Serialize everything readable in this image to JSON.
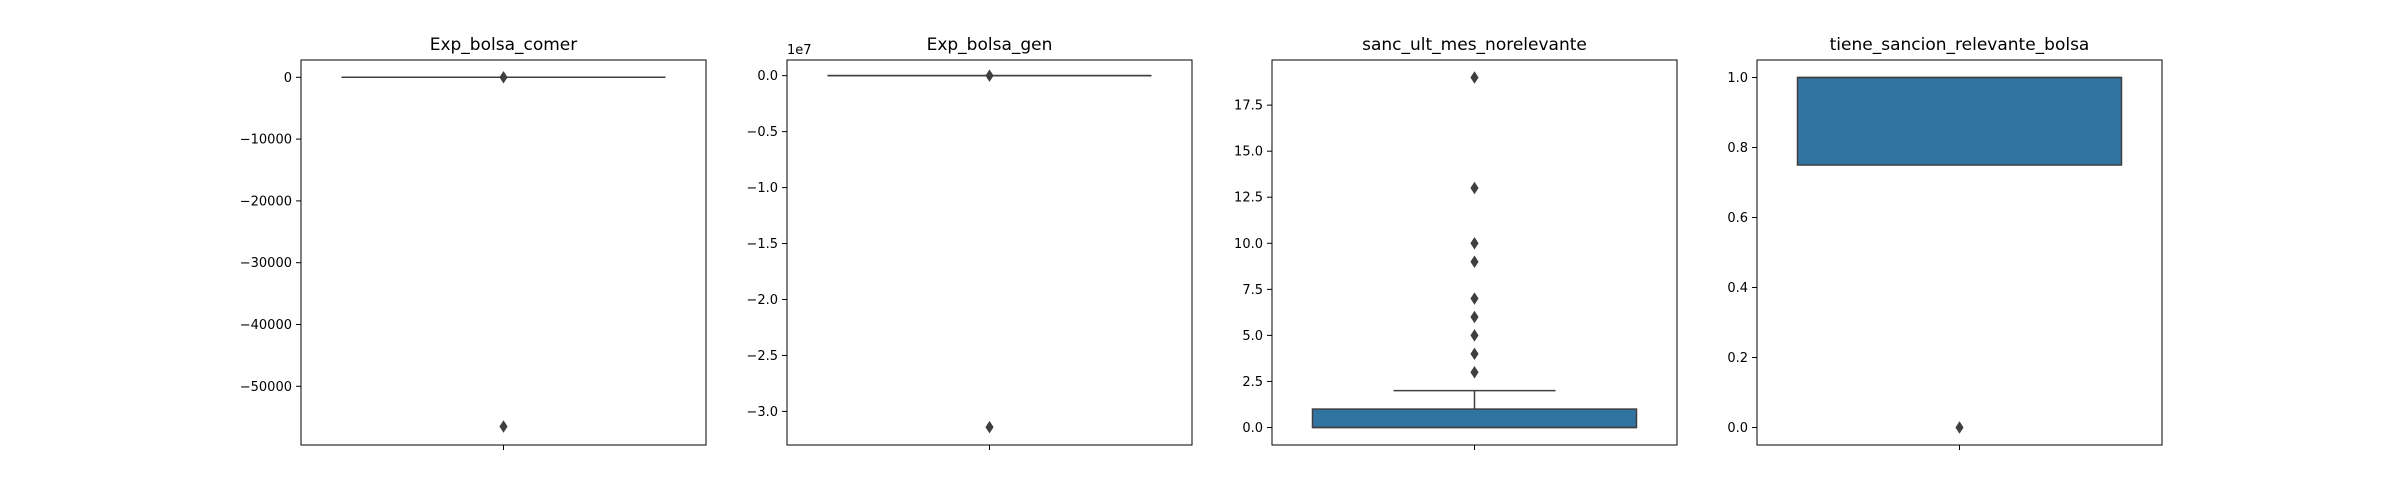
{
  "chart_data": [
    {
      "type": "box",
      "title": "Exp_bolsa_comer",
      "ylim": [
        -59500,
        2800
      ],
      "yticks": [
        {
          "value": 0,
          "label": "0"
        },
        {
          "value": -10000,
          "label": "−10000"
        },
        {
          "value": -20000,
          "label": "−20000"
        },
        {
          "value": -30000,
          "label": "−30000"
        },
        {
          "value": -40000,
          "label": "−40000"
        },
        {
          "value": -50000,
          "label": "−50000"
        }
      ],
      "offset_text": "",
      "box": {
        "q1": 0,
        "median": 0,
        "q3": 0,
        "whisker_low": 0,
        "whisker_high": 0
      },
      "outliers": [
        0,
        -56500
      ],
      "fill": "#3274a1",
      "grid": false
    },
    {
      "type": "box",
      "title": "Exp_bolsa_gen",
      "ylim": [
        -33000000,
        1400000
      ],
      "yticks": [
        {
          "value": 0,
          "label": "0.0"
        },
        {
          "value": -5000000,
          "label": "−0.5"
        },
        {
          "value": -10000000,
          "label": "−1.0"
        },
        {
          "value": -15000000,
          "label": "−1.5"
        },
        {
          "value": -20000000,
          "label": "−2.0"
        },
        {
          "value": -25000000,
          "label": "−2.5"
        },
        {
          "value": -30000000,
          "label": "−3.0"
        }
      ],
      "offset_text": "1e7",
      "box": {
        "q1": 0,
        "median": 0,
        "q3": 0,
        "whisker_low": 0,
        "whisker_high": 0
      },
      "outliers": [
        0,
        -31400000
      ],
      "fill": "#3274a1",
      "grid": false
    },
    {
      "type": "box",
      "title": "sanc_ult_mes_norelevante",
      "ylim": [
        -0.95,
        19.95
      ],
      "yticks": [
        {
          "value": 0,
          "label": "0.0"
        },
        {
          "value": 2.5,
          "label": "2.5"
        },
        {
          "value": 5,
          "label": "5.0"
        },
        {
          "value": 7.5,
          "label": "7.5"
        },
        {
          "value": 10,
          "label": "10.0"
        },
        {
          "value": 12.5,
          "label": "12.5"
        },
        {
          "value": 15,
          "label": "15.0"
        },
        {
          "value": 17.5,
          "label": "17.5"
        }
      ],
      "offset_text": "",
      "box": {
        "q1": 0,
        "median": 0,
        "q3": 1,
        "whisker_low": 0,
        "whisker_high": 2
      },
      "outliers": [
        3,
        4,
        5,
        6,
        7,
        9,
        10,
        13,
        19
      ],
      "fill": "#3274a1",
      "grid": false
    },
    {
      "type": "box",
      "title": "tiene_sancion_relevante_bolsa",
      "ylim": [
        -0.05,
        1.05
      ],
      "yticks": [
        {
          "value": 0,
          "label": "0.0"
        },
        {
          "value": 0.2,
          "label": "0.2"
        },
        {
          "value": 0.4,
          "label": "0.4"
        },
        {
          "value": 0.6,
          "label": "0.6"
        },
        {
          "value": 0.8,
          "label": "0.8"
        },
        {
          "value": 1.0,
          "label": "1.0"
        }
      ],
      "offset_text": "",
      "box": {
        "q1": 0.75,
        "median": 1,
        "q3": 1,
        "whisker_low": 0.75,
        "whisker_high": 1
      },
      "outliers": [
        0
      ],
      "fill": "#3274a1",
      "grid": false
    }
  ]
}
